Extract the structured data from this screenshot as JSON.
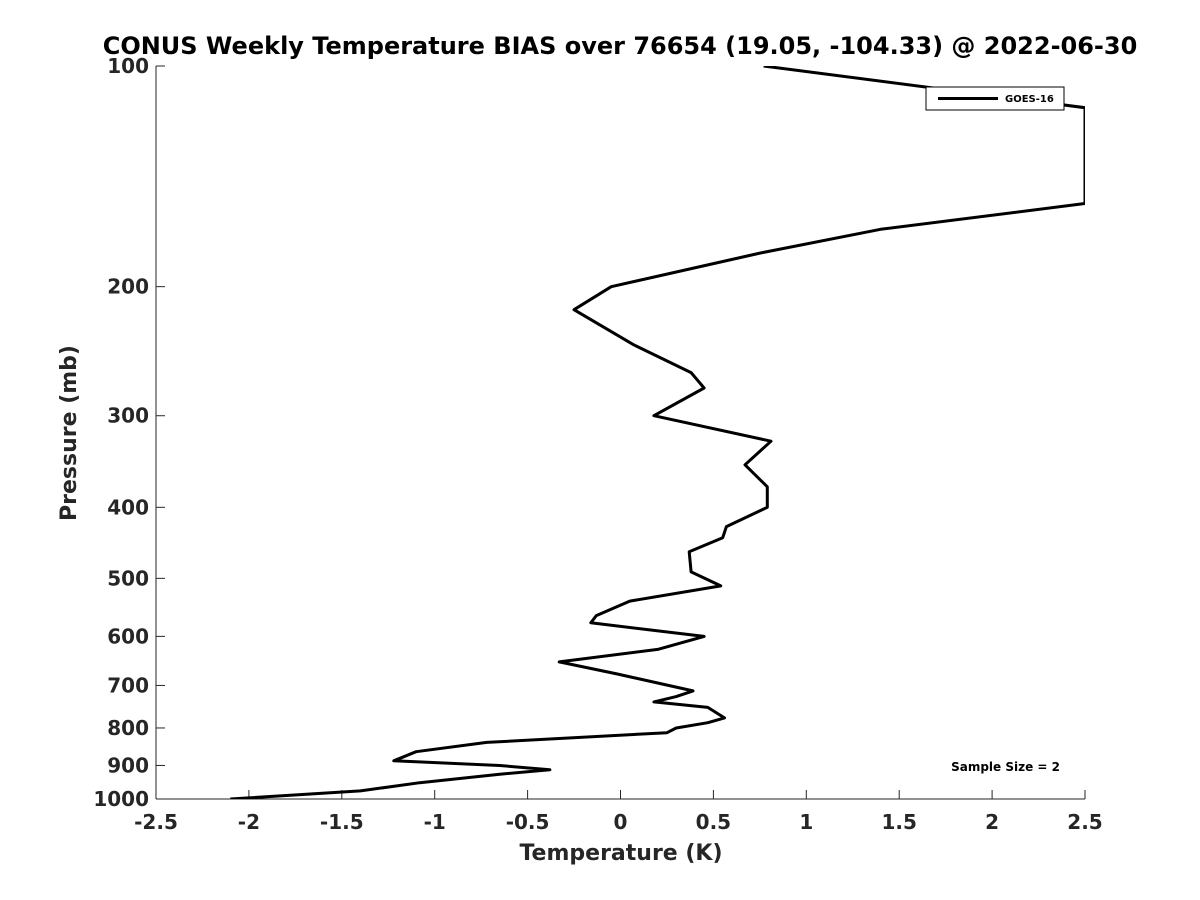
{
  "chart_data": {
    "type": "line",
    "title": "CONUS Weekly Temperature BIAS over 76654 (19.05, -104.33) @ 2022-06-30",
    "xlabel": "Temperature (K)",
    "ylabel": "Pressure (mb)",
    "xlim": [
      -2.5,
      2.5
    ],
    "ylim": [
      100,
      1000
    ],
    "y_scale": "log",
    "y_reversed": true,
    "x_ticks": [
      -2.5,
      -2,
      -1.5,
      -1,
      -0.5,
      0,
      0.5,
      1,
      1.5,
      2,
      2.5
    ],
    "x_tick_labels": [
      "-2.5",
      "-2",
      "-1.5",
      "-1",
      "-0.5",
      "0",
      "0.5",
      "1",
      "1.5",
      "2",
      "2.5"
    ],
    "y_ticks": [
      100,
      200,
      300,
      400,
      500,
      600,
      700,
      800,
      900,
      1000
    ],
    "y_tick_labels": [
      "100",
      "200",
      "300",
      "400",
      "500",
      "600",
      "700",
      "800",
      "900",
      "1000"
    ],
    "grid": false,
    "legend_position": "top-right",
    "series": [
      {
        "name": "GOES-16",
        "color": "#000000",
        "points": [
          [
            -2.1,
            1000
          ],
          [
            -1.4,
            975
          ],
          [
            -1.08,
            950
          ],
          [
            -0.65,
            925
          ],
          [
            -0.38,
            912
          ],
          [
            -0.65,
            900
          ],
          [
            -1.22,
            887
          ],
          [
            -1.1,
            862
          ],
          [
            -0.72,
            837
          ],
          [
            0.25,
            812
          ],
          [
            0.3,
            800
          ],
          [
            0.47,
            787
          ],
          [
            0.56,
            775
          ],
          [
            0.47,
            750
          ],
          [
            0.18,
            737
          ],
          [
            0.3,
            725
          ],
          [
            0.39,
            712
          ],
          [
            -0.02,
            675
          ],
          [
            -0.33,
            650
          ],
          [
            0.2,
            625
          ],
          [
            0.45,
            600
          ],
          [
            -0.16,
            575
          ],
          [
            -0.13,
            562
          ],
          [
            0.05,
            537
          ],
          [
            0.54,
            512
          ],
          [
            0.38,
            490
          ],
          [
            0.37,
            460
          ],
          [
            0.55,
            440
          ],
          [
            0.57,
            425
          ],
          [
            0.79,
            400
          ],
          [
            0.79,
            375
          ],
          [
            0.67,
            350
          ],
          [
            0.81,
            325
          ],
          [
            0.18,
            300
          ],
          [
            0.45,
            275
          ],
          [
            0.38,
            262
          ],
          [
            0.07,
            240
          ],
          [
            -0.25,
            215
          ],
          [
            -0.05,
            200
          ],
          [
            0.75,
            180
          ],
          [
            1.4,
            167
          ],
          [
            2.5,
            154
          ],
          [
            2.5,
            114
          ],
          [
            0.77,
            100
          ]
        ]
      }
    ],
    "annotation": "Sample Size = 2"
  }
}
